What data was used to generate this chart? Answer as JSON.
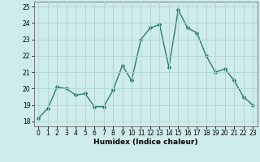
{
  "x": [
    0,
    1,
    2,
    3,
    4,
    5,
    6,
    7,
    8,
    9,
    10,
    11,
    12,
    13,
    14,
    15,
    16,
    17,
    18,
    19,
    20,
    21,
    22,
    23
  ],
  "y": [
    18.2,
    18.8,
    20.1,
    20.0,
    19.6,
    19.7,
    18.9,
    18.9,
    19.9,
    21.4,
    20.5,
    23.0,
    23.7,
    23.9,
    21.3,
    24.8,
    23.7,
    23.4,
    22.0,
    21.0,
    21.2,
    20.5,
    19.5,
    19.0
  ],
  "line_color": "#2d7d6e",
  "marker": "D",
  "marker_size": 2.0,
  "bg_color": "#ceecea",
  "grid_color": "#aed4d0",
  "xlabel": "Humidex (Indice chaleur)",
  "xlim": [
    -0.5,
    23.5
  ],
  "ylim": [
    17.7,
    25.3
  ],
  "yticks": [
    18,
    19,
    20,
    21,
    22,
    23,
    24,
    25
  ],
  "xticks": [
    0,
    1,
    2,
    3,
    4,
    5,
    6,
    7,
    8,
    9,
    10,
    11,
    12,
    13,
    14,
    15,
    16,
    17,
    18,
    19,
    20,
    21,
    22,
    23
  ],
  "xlabel_fontsize": 6.5,
  "tick_fontsize": 5.5,
  "line_width": 1.0
}
